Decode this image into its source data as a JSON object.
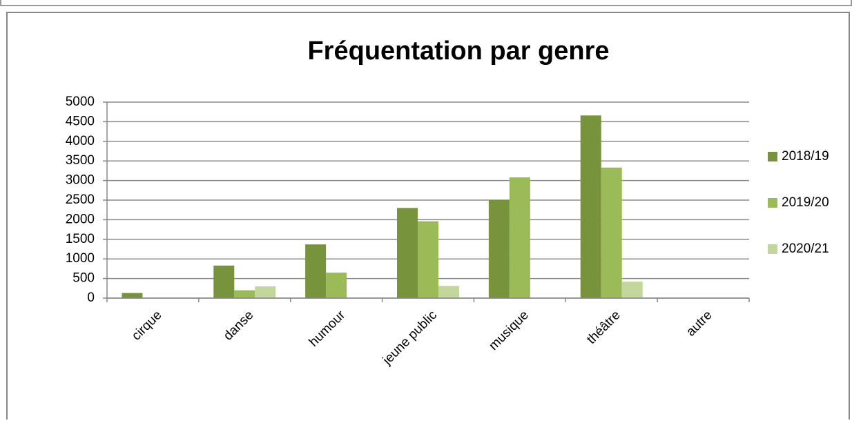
{
  "chart_data": {
    "type": "bar",
    "title": "Fréquentation par genre",
    "categories": [
      "cirque",
      "danse",
      "humour",
      "jeune public",
      "musique",
      "théâtre",
      "autre"
    ],
    "series": [
      {
        "name": "2018/19",
        "color": "#77933c",
        "values": [
          130,
          830,
          1370,
          2300,
          2500,
          4660,
          0
        ]
      },
      {
        "name": "2019/20",
        "color": "#9bbb59",
        "values": [
          0,
          200,
          650,
          1960,
          3080,
          3330,
          0
        ]
      },
      {
        "name": "2020/21",
        "color": "#c3d69b",
        "values": [
          0,
          300,
          0,
          310,
          0,
          420,
          0
        ]
      }
    ],
    "ylim": [
      0,
      5000
    ],
    "yticks": [
      0,
      500,
      1000,
      1500,
      2000,
      2500,
      3000,
      3500,
      4000,
      4500,
      5000
    ],
    "grid": true,
    "legend": "right"
  }
}
